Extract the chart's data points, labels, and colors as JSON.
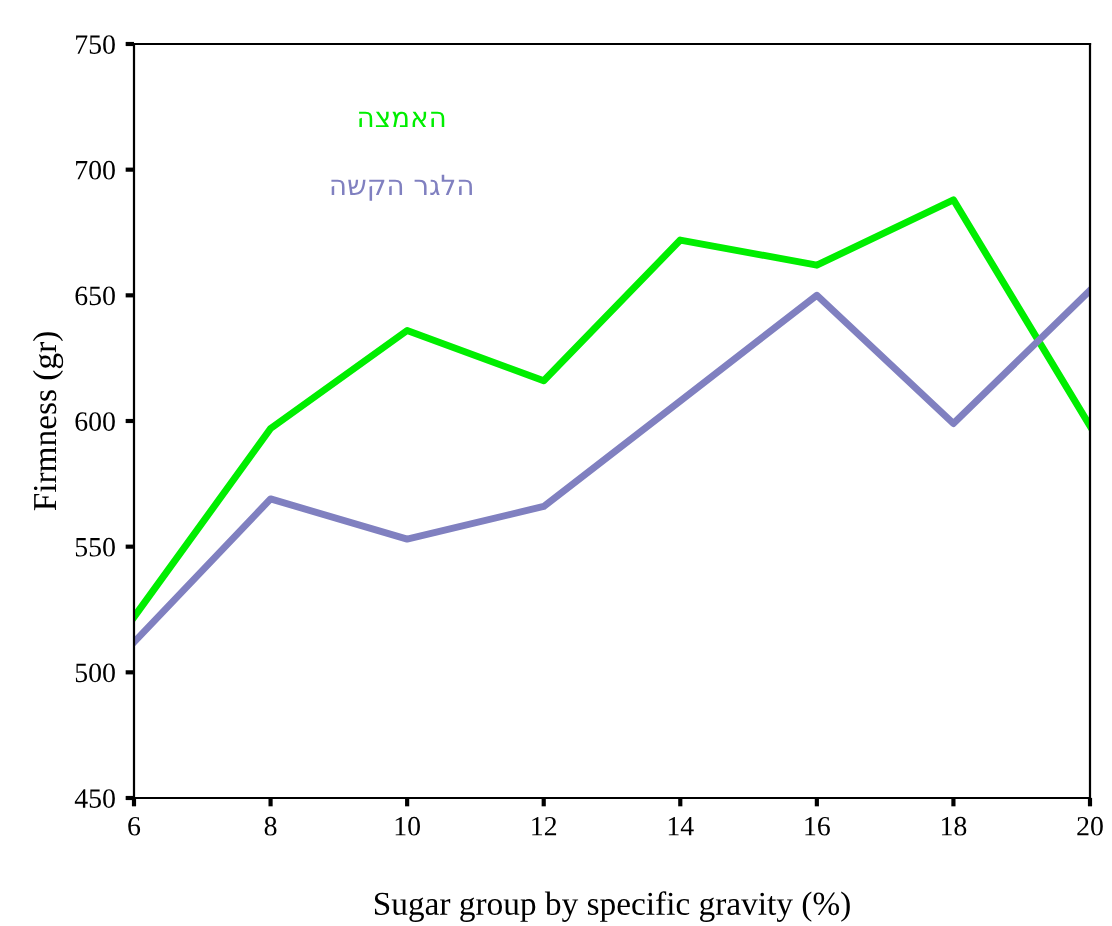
{
  "chart_data": {
    "type": "line",
    "xlabel": "Sugar group by specific gravity (%)",
    "ylabel": "Firmness (gr)",
    "x": [
      6,
      8,
      10,
      12,
      14,
      16,
      18,
      20
    ],
    "series": [
      {
        "name": "הצמאה",
        "color": "#00ee00",
        "values": [
          522,
          597,
          636,
          616,
          672,
          662,
          688,
          598
        ]
      },
      {
        "name": "השקה רגלה",
        "color": "#8080c0",
        "values": [
          512,
          569,
          553,
          566,
          608,
          650,
          599,
          652
        ]
      }
    ],
    "xlim": [
      6,
      20
    ],
    "xticks": [
      6,
      8,
      10,
      12,
      14,
      16,
      18,
      20
    ],
    "ylim": [
      450,
      750
    ],
    "yticks": [
      450,
      500,
      550,
      600,
      650,
      700,
      750
    ],
    "grid": false,
    "marker": "none",
    "line_style": "solid"
  }
}
